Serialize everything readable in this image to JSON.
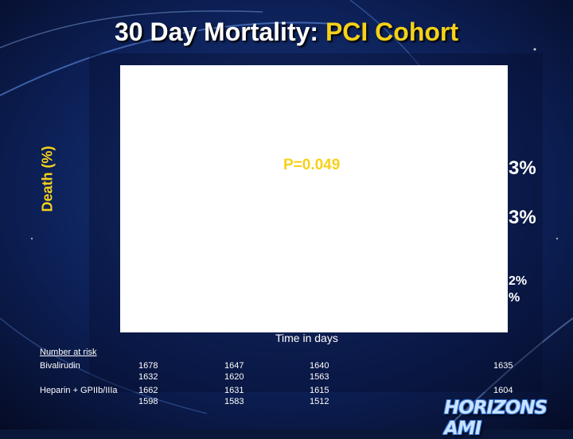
{
  "slide": {
    "title_main": "30 Day Mortality:",
    "title_highlight": "PCI Cohort",
    "logo": "HORIZONS AMI"
  },
  "chart_data": {
    "type": "line",
    "title": "30 Day Mortality: PCI Cohort",
    "ylabel": "Death (%)",
    "xlabel": "Time in days",
    "annotation": "P=0.049",
    "end_labels": [
      "3%",
      "3%",
      "2%",
      "%"
    ],
    "risk_table": {
      "header": "Number at risk",
      "rows": [
        {
          "name": "Bivalirudin",
          "line1": [
            "1678",
            "1647",
            "1640",
            "1635"
          ],
          "line2": [
            "1632",
            "1620",
            "1563"
          ]
        },
        {
          "name": "Heparin + GPIIb/IIIa",
          "line1": [
            "1662",
            "1631",
            "1615",
            "1604"
          ],
          "line2": [
            "1598",
            "1583",
            "1512"
          ]
        }
      ]
    }
  }
}
